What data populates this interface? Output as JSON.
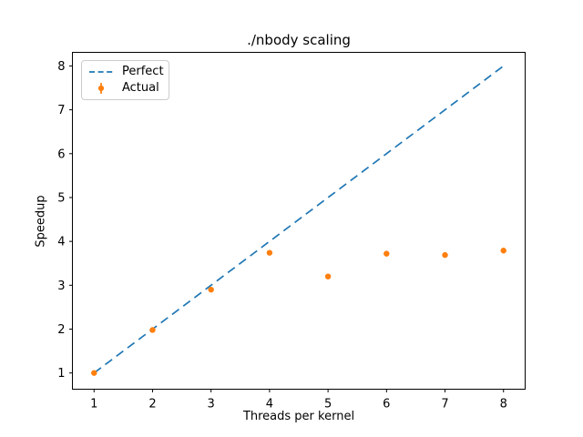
{
  "figure": {
    "background": "#ffffff",
    "axes_edge_color": "#000000",
    "text_color": "#000000",
    "legend_border_color": "#cccccc"
  },
  "chart_data": {
    "type": "scatter",
    "title": "./nbody scaling",
    "xlabel": "Threads per kernel",
    "ylabel": "Speedup",
    "xlim": [
      0.63,
      8.37
    ],
    "ylim": [
      0.63,
      8.31
    ],
    "xticks": [
      1,
      2,
      3,
      4,
      5,
      6,
      7,
      8
    ],
    "yticks": [
      1,
      2,
      3,
      4,
      5,
      6,
      7,
      8
    ],
    "grid": false,
    "legend": {
      "position": "upper-left",
      "entries": [
        "Perfect",
        "Actual"
      ]
    },
    "series": [
      {
        "name": "Perfect",
        "type": "line",
        "line_style": "dashed",
        "color": "#1f77b4",
        "x": [
          1,
          8
        ],
        "y": [
          1,
          8
        ]
      },
      {
        "name": "Actual",
        "type": "scatter",
        "marker": "point-with-errorbar",
        "color": "#ff7f0e",
        "x": [
          1,
          2,
          3,
          4,
          5,
          6,
          7,
          8
        ],
        "y": [
          1.0,
          1.98,
          2.9,
          3.74,
          3.2,
          3.72,
          3.69,
          3.79
        ],
        "yerr": [
          0.05,
          0.06,
          0.05,
          0.05,
          0.04,
          0.04,
          0.04,
          0.05
        ]
      }
    ]
  }
}
